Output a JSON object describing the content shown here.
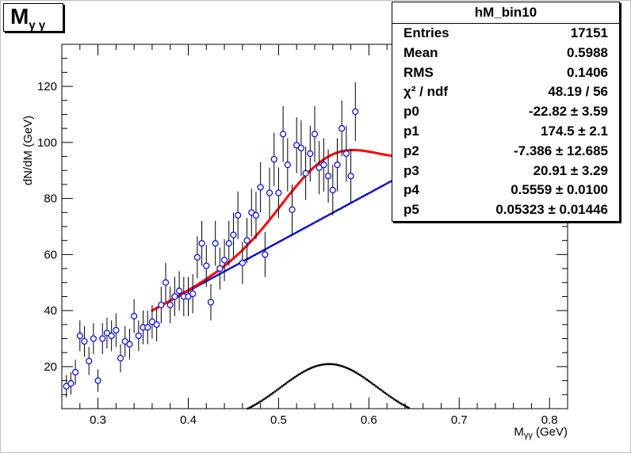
{
  "title_parts": {
    "main": "M",
    "sub": "γ  γ"
  },
  "stats": {
    "name": "hM_bin10",
    "rows": [
      {
        "key": "Entries",
        "value": "17151"
      },
      {
        "key": "Mean",
        "value": "0.5988"
      },
      {
        "key": "RMS",
        "value": "0.1406"
      },
      {
        "key": "χ² / ndf",
        "value": "48.19 / 56"
      },
      {
        "key": "p0",
        "value": "-22.82 ± 3.59"
      },
      {
        "key": "p1",
        "value": "174.5 ± 2.1"
      },
      {
        "key": "p2",
        "value": "-7.386 ± 12.685"
      },
      {
        "key": "p3",
        "value": "20.91 ± 3.29"
      },
      {
        "key": "p4",
        "value": "0.5559 ± 0.0100"
      },
      {
        "key": "p5",
        "value": "0.05323 ± 0.01446"
      }
    ]
  },
  "chart_data": {
    "type": "scatter",
    "xlabel_parts": {
      "main": "M",
      "sub": "γγ",
      "unit": " (GeV)"
    },
    "ylabel": "dN/dM (GeV)",
    "xlim": [
      0.26,
      0.82
    ],
    "ylim": [
      5,
      135
    ],
    "xticks": [
      "0.3",
      "0.4",
      "0.5",
      "0.6",
      "0.7",
      "0.8"
    ],
    "yticks": [
      "20",
      "40",
      "60",
      "80",
      "100",
      "120"
    ],
    "grid": false,
    "colors": {
      "points": "#0000ee",
      "total_fit": "#ff0000",
      "background_fit": "#0000cc",
      "signal_fit": "#000000"
    },
    "points": [
      [
        0.265,
        13,
        4
      ],
      [
        0.27,
        14,
        4
      ],
      [
        0.275,
        18,
        4.5
      ],
      [
        0.28,
        31,
        5.5
      ],
      [
        0.285,
        29,
        5.5
      ],
      [
        0.29,
        22,
        5
      ],
      [
        0.295,
        30,
        5.5
      ],
      [
        0.3,
        15,
        4
      ],
      [
        0.305,
        30,
        5.5
      ],
      [
        0.31,
        32,
        5.5
      ],
      [
        0.315,
        31,
        5.5
      ],
      [
        0.32,
        33,
        6
      ],
      [
        0.325,
        23,
        5
      ],
      [
        0.33,
        29,
        5.5
      ],
      [
        0.335,
        28,
        5.5
      ],
      [
        0.34,
        38,
        6
      ],
      [
        0.345,
        31,
        5.5
      ],
      [
        0.35,
        34,
        6
      ],
      [
        0.355,
        34,
        6
      ],
      [
        0.36,
        36,
        6
      ],
      [
        0.365,
        35,
        6
      ],
      [
        0.37,
        42,
        6.5
      ],
      [
        0.375,
        50,
        7
      ],
      [
        0.38,
        42,
        6.5
      ],
      [
        0.385,
        45,
        7
      ],
      [
        0.39,
        47,
        7
      ],
      [
        0.395,
        45,
        7
      ],
      [
        0.4,
        45,
        7
      ],
      [
        0.405,
        46,
        7
      ],
      [
        0.41,
        59,
        7.5
      ],
      [
        0.415,
        64,
        8
      ],
      [
        0.42,
        56,
        7.5
      ],
      [
        0.425,
        43,
        6.5
      ],
      [
        0.43,
        64,
        8
      ],
      [
        0.435,
        55,
        7.5
      ],
      [
        0.44,
        58,
        7.5
      ],
      [
        0.445,
        64,
        8
      ],
      [
        0.45,
        67,
        8
      ],
      [
        0.455,
        74,
        8.5
      ],
      [
        0.46,
        57,
        7.5
      ],
      [
        0.465,
        65,
        8
      ],
      [
        0.47,
        75,
        8.5
      ],
      [
        0.475,
        74,
        8.5
      ],
      [
        0.48,
        84,
        9
      ],
      [
        0.485,
        60,
        8
      ],
      [
        0.49,
        82,
        9
      ],
      [
        0.495,
        94,
        9.5
      ],
      [
        0.5,
        82,
        9
      ],
      [
        0.505,
        103,
        10
      ],
      [
        0.51,
        92,
        9.5
      ],
      [
        0.515,
        76,
        9
      ],
      [
        0.52,
        99,
        10
      ],
      [
        0.525,
        98,
        10
      ],
      [
        0.53,
        89,
        9.5
      ],
      [
        0.535,
        96,
        10
      ],
      [
        0.54,
        103,
        10
      ],
      [
        0.545,
        91,
        9.5
      ],
      [
        0.55,
        92,
        9.5
      ],
      [
        0.555,
        88,
        9.5
      ],
      [
        0.56,
        83,
        9
      ],
      [
        0.565,
        92,
        9.5
      ],
      [
        0.57,
        105,
        10
      ],
      [
        0.575,
        96,
        10
      ],
      [
        0.58,
        88,
        9.5
      ],
      [
        0.585,
        111,
        10.5
      ]
    ],
    "fit_x_range": [
      0.36,
      0.72
    ],
    "signal_x_range": [
      0.45,
      0.66
    ]
  }
}
